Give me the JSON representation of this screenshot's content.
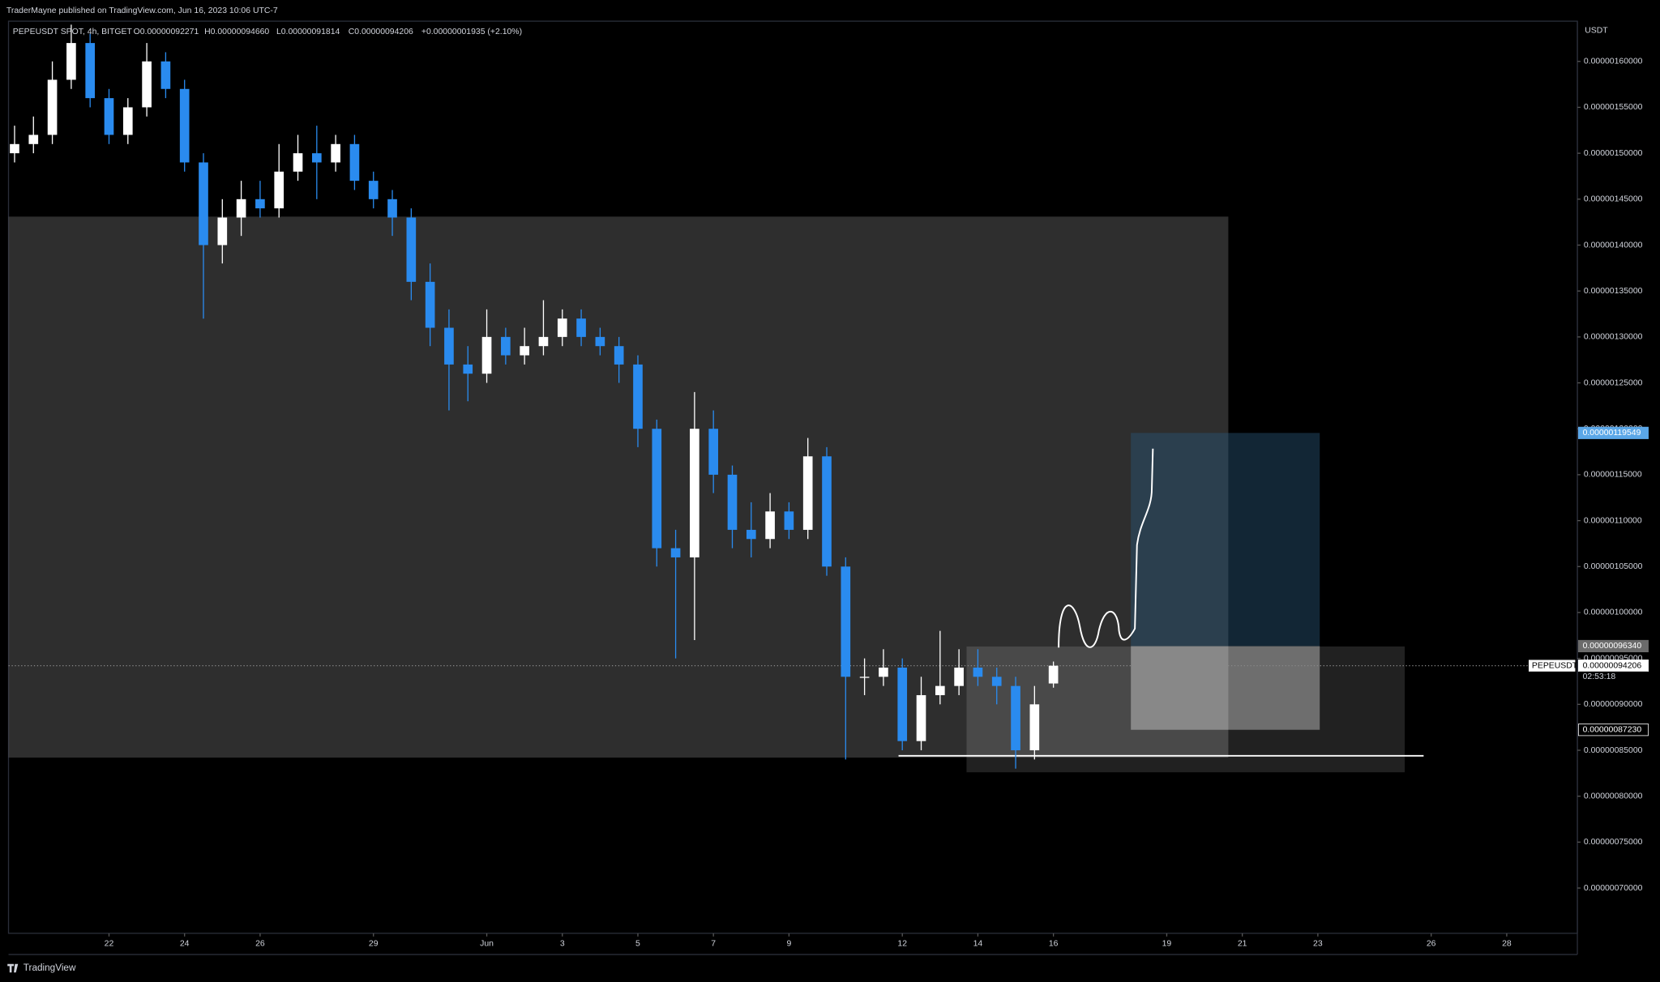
{
  "chart_data": {
    "type": "candlestick",
    "published": "TraderMayne published on TradingView.com, Jun 16, 2023 10:06 UTC-7",
    "title": "PEPEUSDT SPOT, 4h, BITGET",
    "ohlc_text": [
      "O0.00000092271",
      "H0.00000094660",
      "L0.00000091814",
      "C0.00000094206",
      "+0.00000001935 (+2.10%)"
    ],
    "y_unit": "USDT",
    "footer": "TradingView",
    "symbol_label": "PEPEUSDT",
    "countdown": "02:53:18",
    "up_color": "#ffffff",
    "down_color": "#2a8bef",
    "x": [
      19.5,
      20,
      20.5,
      21,
      21.5,
      22,
      22.5,
      23,
      23.5,
      24,
      24.5,
      25,
      25.5,
      26,
      26.5,
      27,
      27.5,
      28,
      28.5,
      29,
      29.5,
      30,
      30.5,
      31,
      31.5,
      32,
      32.5,
      33,
      33.5,
      34,
      34.5,
      35,
      35.5,
      36,
      36.5,
      37,
      37.5,
      38,
      38.5,
      39,
      39.5,
      40,
      40.5,
      41,
      41.5,
      42,
      42.5,
      43,
      43.5,
      44,
      44.5,
      45,
      45.5,
      46,
      46.5,
      47
    ],
    "open": [
      1.5e-06,
      1.51e-06,
      1.52e-06,
      1.58e-06,
      1.62e-06,
      1.56e-06,
      1.52e-06,
      1.55e-06,
      1.6e-06,
      1.57e-06,
      1.49e-06,
      1.4e-06,
      1.43e-06,
      1.45e-06,
      1.44e-06,
      1.48e-06,
      1.5e-06,
      1.49e-06,
      1.51e-06,
      1.47e-06,
      1.45e-06,
      1.43e-06,
      1.36e-06,
      1.31e-06,
      1.27e-06,
      1.26e-06,
      1.3e-06,
      1.28e-06,
      1.29e-06,
      1.3e-06,
      1.32e-06,
      1.3e-06,
      1.29e-06,
      1.27e-06,
      1.2e-06,
      1.07e-06,
      1.06e-06,
      1.2e-06,
      1.15e-06,
      1.09e-06,
      1.08e-06,
      1.11e-06,
      1.09e-06,
      1.17e-06,
      1.05e-06,
      9.3e-07,
      9.3e-07,
      9.4e-07,
      8.6e-07,
      9.1e-07,
      9.2e-07,
      9.4e-07,
      9.3e-07,
      9.2e-07,
      8.5e-07,
      9.2271e-07
    ],
    "high": [
      1.53e-06,
      1.54e-06,
      1.6e-06,
      1.64e-06,
      1.63e-06,
      1.57e-06,
      1.56e-06,
      1.62e-06,
      1.61e-06,
      1.58e-06,
      1.5e-06,
      1.45e-06,
      1.47e-06,
      1.47e-06,
      1.51e-06,
      1.52e-06,
      1.53e-06,
      1.52e-06,
      1.52e-06,
      1.48e-06,
      1.46e-06,
      1.44e-06,
      1.38e-06,
      1.33e-06,
      1.29e-06,
      1.33e-06,
      1.31e-06,
      1.31e-06,
      1.34e-06,
      1.33e-06,
      1.33e-06,
      1.31e-06,
      1.3e-06,
      1.28e-06,
      1.21e-06,
      1.09e-06,
      1.24e-06,
      1.22e-06,
      1.16e-06,
      1.12e-06,
      1.13e-06,
      1.12e-06,
      1.19e-06,
      1.18e-06,
      1.06e-06,
      9.5e-07,
      9.6e-07,
      9.5e-07,
      9.3e-07,
      9.8e-07,
      9.6e-07,
      9.6e-07,
      9.4e-07,
      9.3e-07,
      9.2e-07,
      9.466e-07
    ],
    "low": [
      1.49e-06,
      1.5e-06,
      1.51e-06,
      1.57e-06,
      1.55e-06,
      1.51e-06,
      1.51e-06,
      1.54e-06,
      1.56e-06,
      1.48e-06,
      1.32e-06,
      1.38e-06,
      1.41e-06,
      1.43e-06,
      1.43e-06,
      1.47e-06,
      1.45e-06,
      1.48e-06,
      1.46e-06,
      1.44e-06,
      1.41e-06,
      1.34e-06,
      1.29e-06,
      1.22e-06,
      1.23e-06,
      1.25e-06,
      1.27e-06,
      1.27e-06,
      1.28e-06,
      1.29e-06,
      1.29e-06,
      1.28e-06,
      1.25e-06,
      1.18e-06,
      1.05e-06,
      9.5e-07,
      9.7e-07,
      1.13e-06,
      1.07e-06,
      1.06e-06,
      1.07e-06,
      1.08e-06,
      1.08e-06,
      1.04e-06,
      8.4e-07,
      9.1e-07,
      9.2e-07,
      8.5e-07,
      8.5e-07,
      9e-07,
      9.1e-07,
      9.2e-07,
      9e-07,
      8.3e-07,
      8.4e-07,
      9.1814e-07
    ],
    "close": [
      1.51e-06,
      1.52e-06,
      1.58e-06,
      1.62e-06,
      1.56e-06,
      1.52e-06,
      1.55e-06,
      1.6e-06,
      1.57e-06,
      1.49e-06,
      1.4e-06,
      1.43e-06,
      1.45e-06,
      1.44e-06,
      1.48e-06,
      1.5e-06,
      1.49e-06,
      1.51e-06,
      1.47e-06,
      1.45e-06,
      1.43e-06,
      1.36e-06,
      1.31e-06,
      1.27e-06,
      1.26e-06,
      1.3e-06,
      1.28e-06,
      1.29e-06,
      1.3e-06,
      1.32e-06,
      1.3e-06,
      1.29e-06,
      1.27e-06,
      1.2e-06,
      1.07e-06,
      1.06e-06,
      1.2e-06,
      1.15e-06,
      1.09e-06,
      1.08e-06,
      1.11e-06,
      1.09e-06,
      1.17e-06,
      1.05e-06,
      9.3e-07,
      9.3e-07,
      9.4e-07,
      8.6e-07,
      9.1e-07,
      9.2e-07,
      9.4e-07,
      9.3e-07,
      9.2e-07,
      8.5e-07,
      9e-07,
      9.4206e-07
    ],
    "xlim": [
      19.34,
      60.87
    ],
    "xticks": [
      22,
      24,
      26,
      29,
      {
        "value": 32,
        "label": "Jun"
      },
      {
        "value": 34,
        "label": "3"
      },
      {
        "value": 36,
        "label": "5"
      },
      {
        "value": 38,
        "label": "7"
      },
      {
        "value": 40,
        "label": "9"
      },
      {
        "value": 43,
        "label": "12"
      },
      {
        "value": 45,
        "label": "14"
      },
      {
        "value": 47,
        "label": "16"
      },
      {
        "value": 50,
        "label": "19"
      },
      {
        "value": 52,
        "label": "21"
      },
      {
        "value": 54,
        "label": "23"
      },
      {
        "value": 57,
        "label": "26"
      },
      {
        "value": 59,
        "label": "28"
      }
    ],
    "ylim": [
      6.507e-07,
      1.6438e-06
    ],
    "yticks": [
      {
        "value": 7e-07,
        "label": "0.00000070000"
      },
      {
        "value": 7.5e-07,
        "label": "0.00000075000"
      },
      {
        "value": 8e-07,
        "label": "0.00000080000"
      },
      {
        "value": 8.5e-07,
        "label": "0.00000085000"
      },
      {
        "value": 9e-07,
        "label": "0.00000090000"
      },
      {
        "value": 9.5e-07,
        "label": "0.00000095000"
      },
      {
        "value": 1e-06,
        "label": "0.00000100000"
      },
      {
        "value": 1.05e-06,
        "label": "0.00000105000"
      },
      {
        "value": 1.1e-06,
        "label": "0.00000110000"
      },
      {
        "value": 1.15e-06,
        "label": "0.00000115000"
      },
      {
        "value": 1.2e-06,
        "label": "0.00000120000"
      },
      {
        "value": 1.25e-06,
        "label": "0.00000125000"
      },
      {
        "value": 1.3e-06,
        "label": "0.00000130000"
      },
      {
        "value": 1.35e-06,
        "label": "0.00000135000"
      },
      {
        "value": 1.4e-06,
        "label": "0.00000140000"
      },
      {
        "value": 1.45e-06,
        "label": "0.00000145000"
      },
      {
        "value": 1.5e-06,
        "label": "0.00000150000"
      },
      {
        "value": 1.55e-06,
        "label": "0.00000155000"
      },
      {
        "value": 1.6e-06,
        "label": "0.00000160000"
      }
    ],
    "zones": [
      {
        "x": [
          19.34,
          51.63
        ],
        "y": [
          8.42e-07,
          1.431e-06
        ],
        "color": "rgba(110,110,110,0.42)"
      },
      {
        "x": [
          44.7,
          56.3
        ],
        "y": [
          8.26e-07,
          9.63e-07
        ],
        "color": "rgba(255,255,255,0.13)"
      }
    ],
    "position_x": [
      49.05,
      54.05
    ],
    "levels": [
      {
        "value": 1.19549e-06,
        "label": "0.00000119549",
        "color": "#5ba7e8"
      },
      {
        "value": 9.634e-07,
        "label": "0.00000096340",
        "color": "#6b6b6b"
      },
      {
        "value": 8.723e-07,
        "label": "0.00000087230",
        "color": "#000000"
      },
      {
        "value": 9.4206e-07,
        "label": "0.00000094206",
        "color": "#ffffff"
      }
    ],
    "profit_color": "rgba(40,85,118,0.45)",
    "loss_color": "rgba(255,255,255,0.35)",
    "support": {
      "x": [
        42.9,
        56.8
      ],
      "value": 8.44e-07
    }
  }
}
